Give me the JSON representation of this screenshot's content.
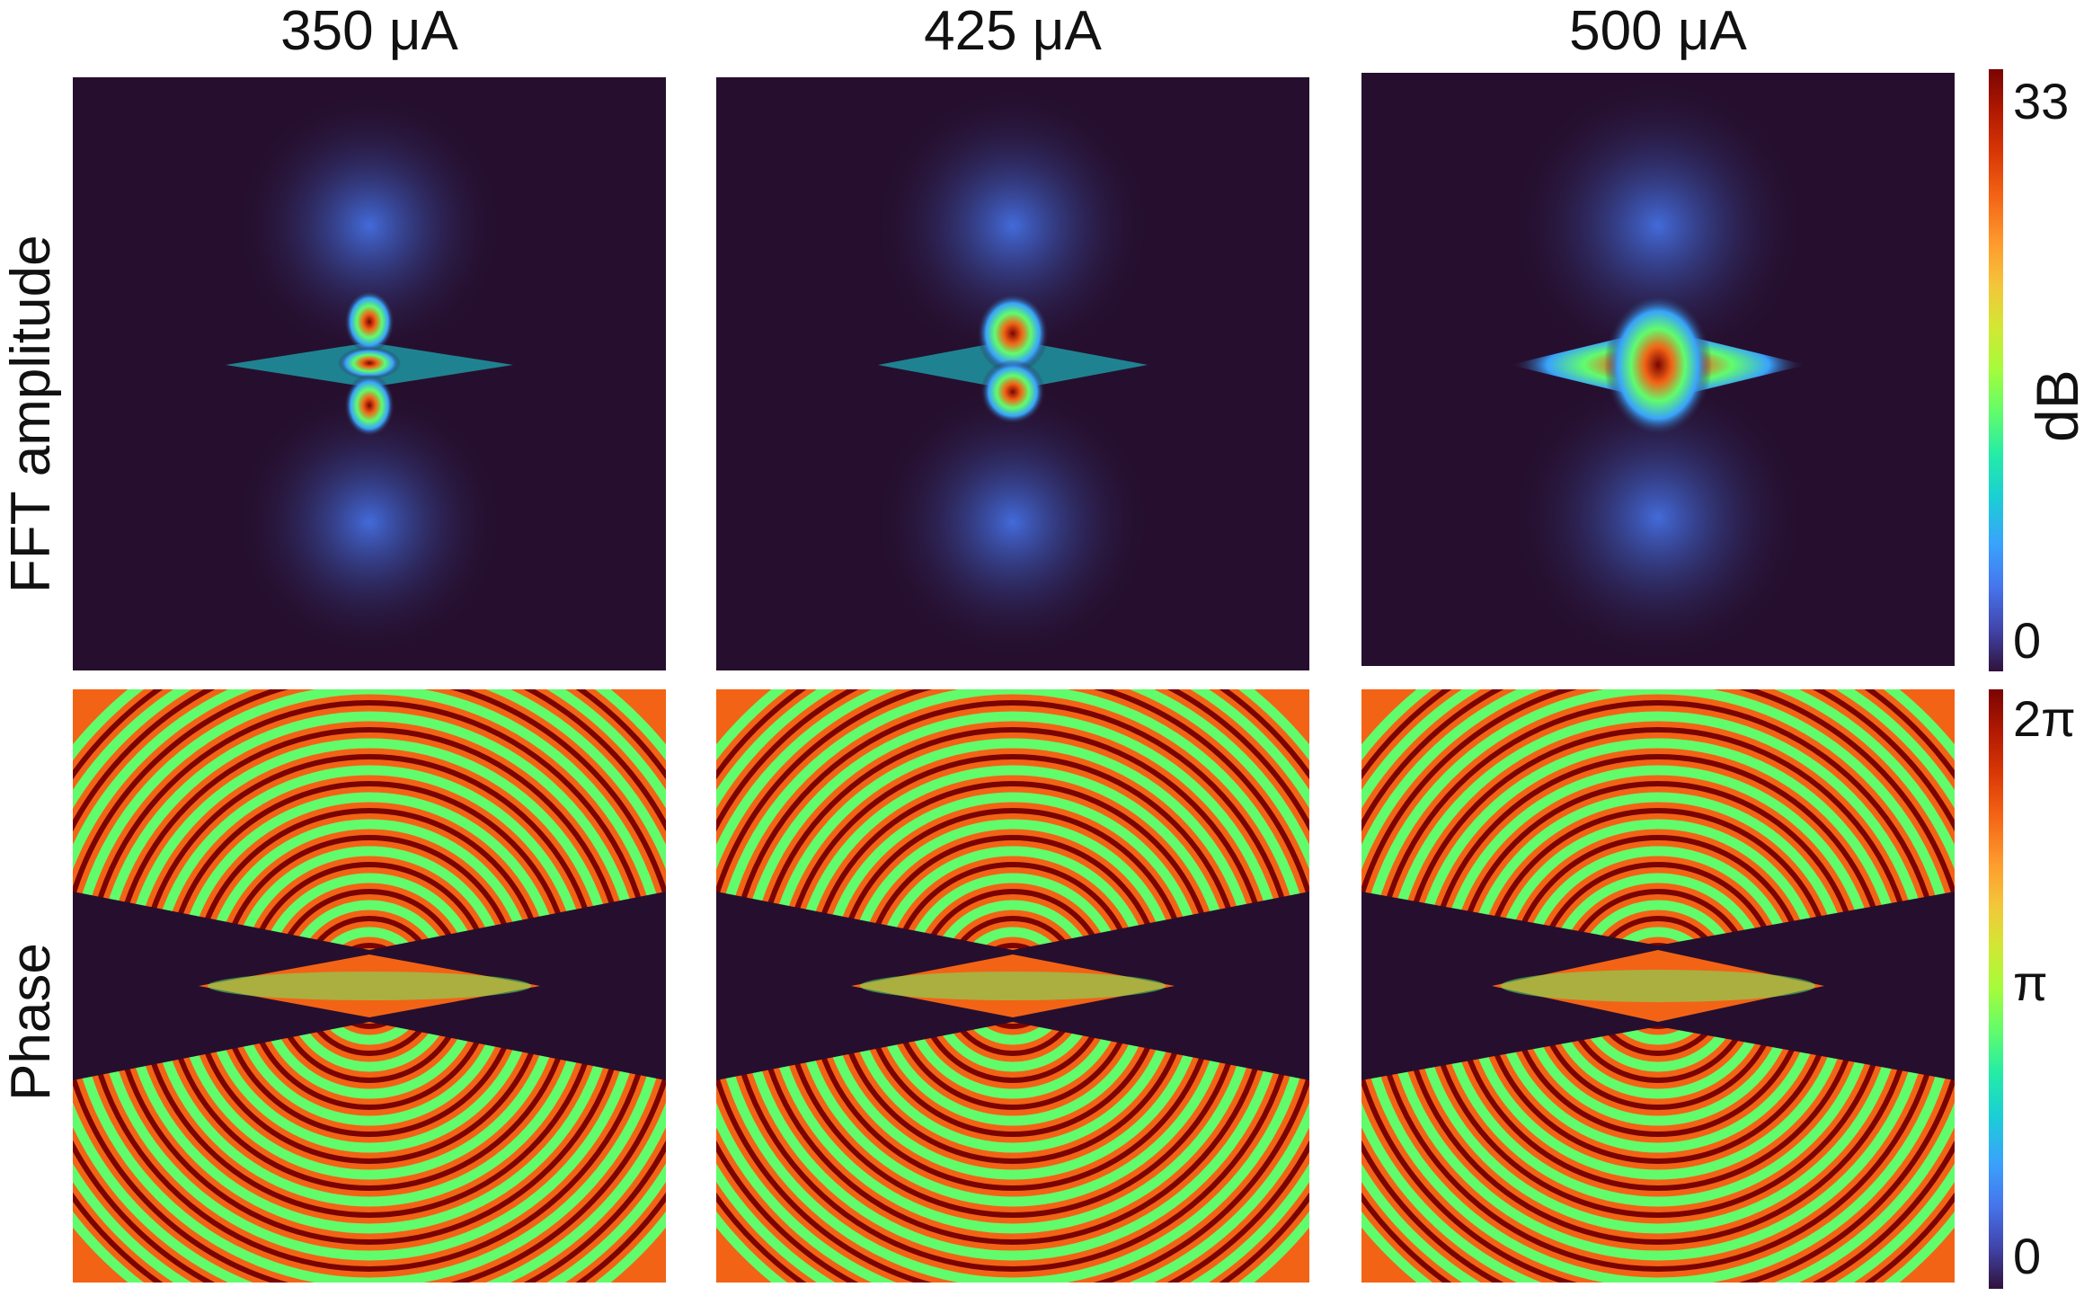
{
  "columns": [
    "350 μA",
    "425 μA",
    "500 μA"
  ],
  "rows": [
    "FFT amplitude",
    "Phase"
  ],
  "colorbars": {
    "amplitude": {
      "label": "dB",
      "max": "33",
      "min": "0"
    },
    "phase": {
      "max": "2π",
      "mid": "π",
      "min": "0"
    }
  },
  "colormap": [
    "#30123b",
    "#4145ab",
    "#4675ed",
    "#39a2fc",
    "#1bcfd4",
    "#24eca6",
    "#61fc6c",
    "#a4fc3b",
    "#d1e834",
    "#f3c63a",
    "#fe9b2d",
    "#f36315",
    "#d93806",
    "#b11901",
    "#7a0402"
  ],
  "background": "#260f2e"
}
